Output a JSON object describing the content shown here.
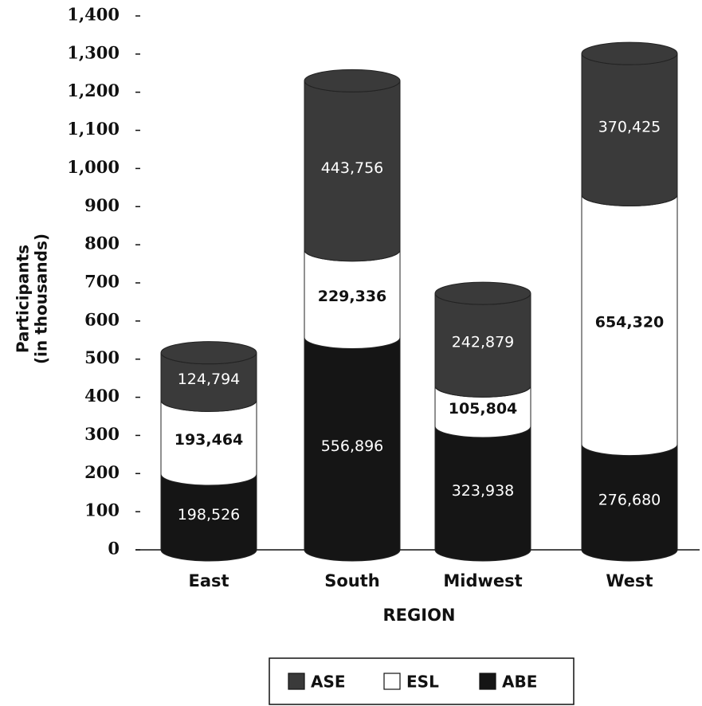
{
  "chart_data": {
    "type": "stacked_bar",
    "y_label": [
      "Participants",
      "(in thousands)"
    ],
    "x_label": "REGION",
    "categories": [
      "East",
      "South",
      "Midwest",
      "West"
    ],
    "series": [
      {
        "name": "ABE",
        "color": "#151515",
        "values": [
          198.526,
          556.896,
          323.938,
          276.68
        ],
        "value_labels": [
          "198,526",
          "556,896",
          "323,938",
          "276,680"
        ]
      },
      {
        "name": "ESL",
        "color": "#ffffff",
        "values": [
          193.464,
          229.336,
          105.804,
          654.32
        ],
        "value_labels": [
          "193,464",
          "229,336",
          "105,804",
          "654,320"
        ]
      },
      {
        "name": "ASE",
        "color": "#3a3a3a",
        "values": [
          124.794,
          443.756,
          242.879,
          370.425
        ],
        "value_labels": [
          "124,794",
          "443,756",
          "242,879",
          "370,425"
        ]
      }
    ],
    "legend_order": [
      2,
      1,
      0
    ],
    "ylim": [
      0,
      1400
    ],
    "yticks": [
      0,
      100,
      200,
      300,
      400,
      500,
      600,
      700,
      800,
      900,
      {
        "value": 1000,
        "label": "1,000"
      },
      {
        "value": 1100,
        "label": "1,100"
      },
      {
        "value": 1200,
        "label": "1,200"
      },
      {
        "value": 1300,
        "label": "1,300"
      },
      {
        "value": 1400,
        "label": "1,400"
      }
    ]
  }
}
